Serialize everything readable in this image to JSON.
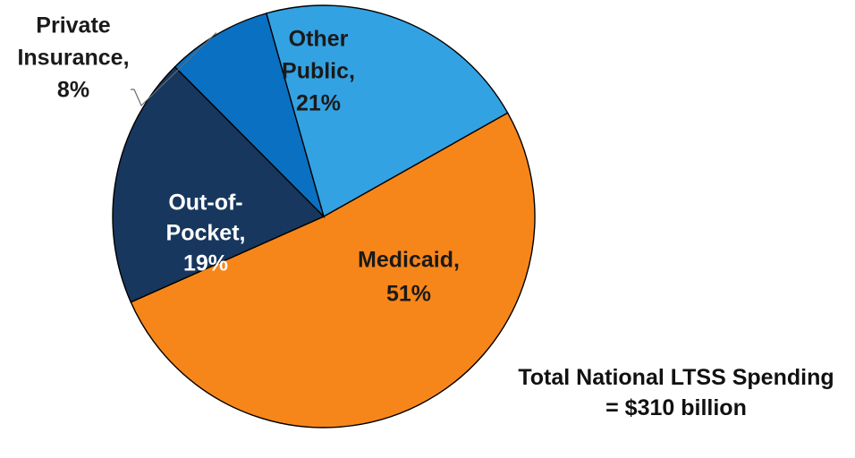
{
  "chart_data": {
    "type": "pie",
    "title": "",
    "unit": "%",
    "slices": [
      {
        "name": "Medicaid",
        "value": 51,
        "label_lines": [
          "Medicaid,",
          "51%"
        ],
        "color": "#F7861A",
        "label_color": "#1a1a1a"
      },
      {
        "name": "Out-of-Pocket",
        "value": 19,
        "label_lines": [
          "Out-of-",
          "Pocket,",
          "19%"
        ],
        "color": "#17375E",
        "label_color": "#ffffff"
      },
      {
        "name": "Private Insurance",
        "value": 8,
        "label_lines": [
          "Private",
          "Insurance,",
          "8%"
        ],
        "color": "#0A70C2",
        "label_color": "#1a1a1a"
      },
      {
        "name": "Other Public",
        "value": 21,
        "label_lines": [
          "Other",
          "Public,",
          "21%"
        ],
        "color": "#33A2E2",
        "label_color": "#1a1a1a"
      }
    ],
    "annotation": [
      "Total National LTSS Spending",
      "= $310 billion"
    ]
  }
}
